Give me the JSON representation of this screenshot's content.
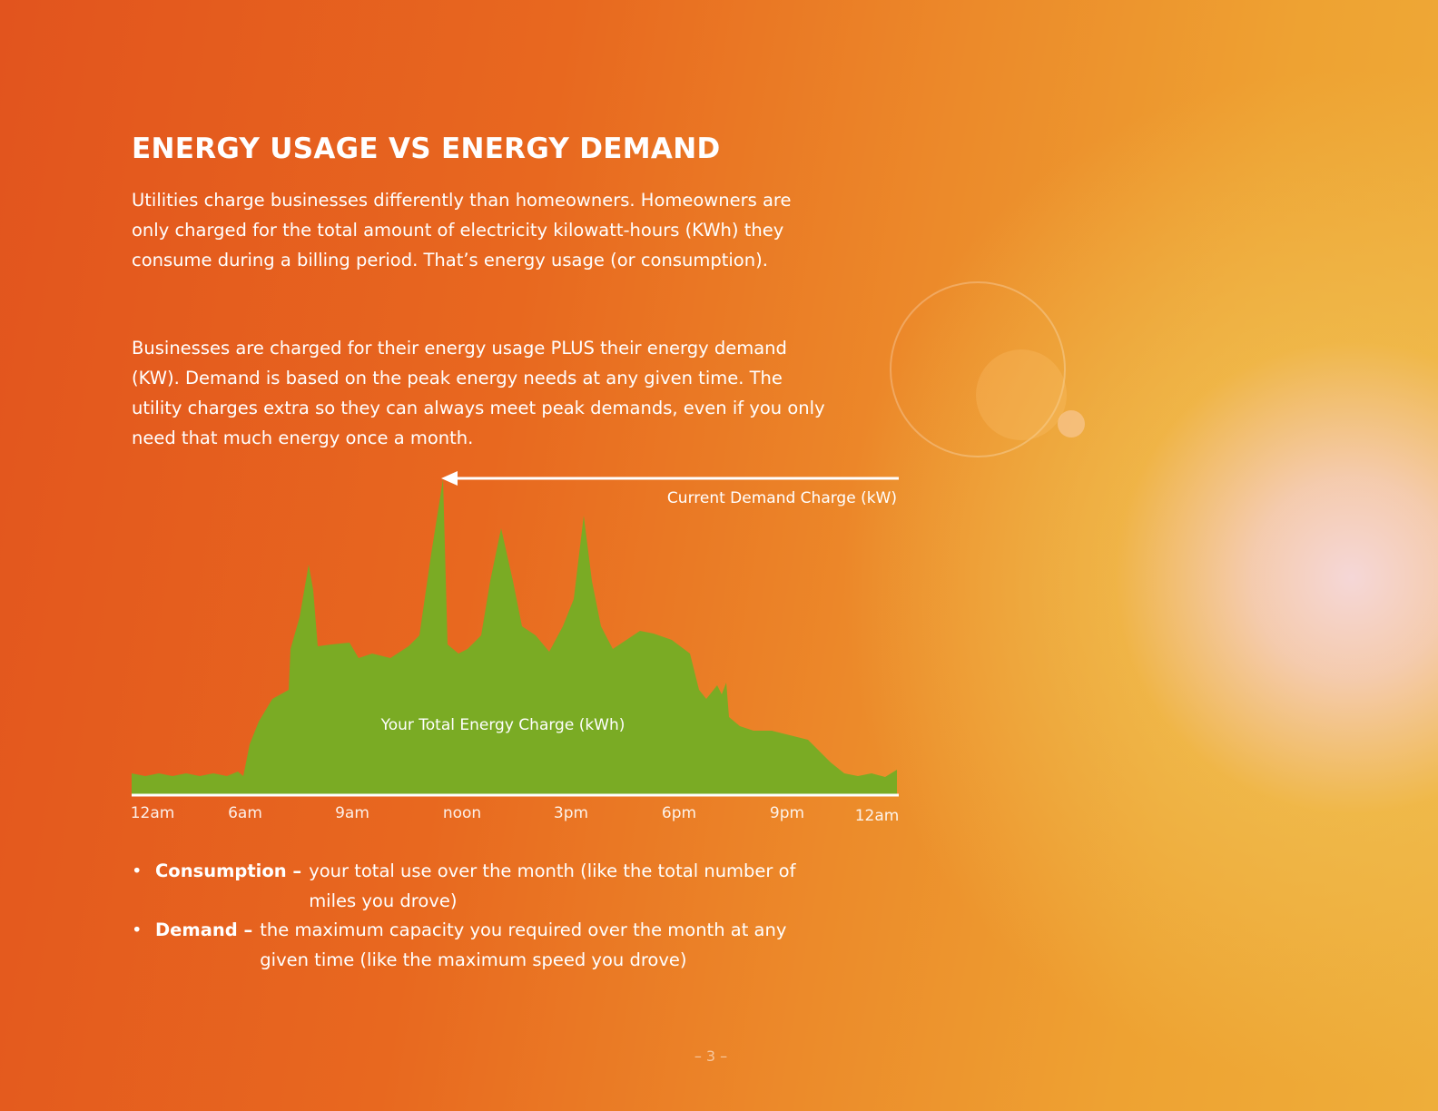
{
  "header": {
    "title": "ENERGY USAGE VS ENERGY DEMAND"
  },
  "paragraphs": [
    "Utilities charge businesses differently than homeowners. Homeowners are only charged for the total amount of electricity kilowatt-hours (KWh) they consume during a billing period. That’s energy usage (or consumption).",
    "Businesses are charged for their energy usage PLUS their energy demand (KW). Demand is based on the peak energy needs at any given time. The utility charges extra so they can always meet peak demands, even if you only need that much energy once a month."
  ],
  "chart": {
    "demand_label": "Current Demand Charge (kW)",
    "energy_label": "Your Total Energy Charge (kWh)",
    "time_labels": [
      "12am",
      "6am",
      "9am",
      "noon",
      "3pm",
      "6pm",
      "9pm",
      "12am"
    ]
  },
  "bullets": [
    {
      "term": "Consumption –",
      "text": "your total use over the month (like the total number of miles you drove)"
    },
    {
      "term": "Demand –",
      "text": "the maximum capacity you required over the month at any given time (like the maximum speed you drove)"
    }
  ],
  "page_number": "– 3 –"
}
